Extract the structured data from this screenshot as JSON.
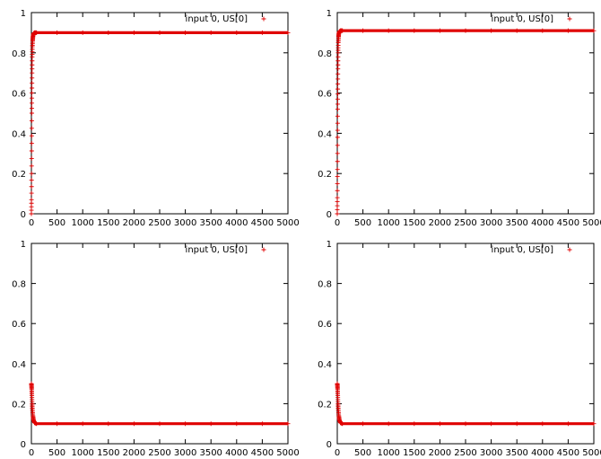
{
  "chart_data": [
    {
      "type": "scatter",
      "xlim": [
        0,
        5000
      ],
      "ylim": [
        0,
        1
      ],
      "x_ticks": [
        0,
        500,
        1000,
        1500,
        2000,
        2500,
        3000,
        3500,
        4000,
        4500,
        5000
      ],
      "y_ticks": [
        0,
        0.2,
        0.4,
        0.6,
        0.8,
        1
      ],
      "grid": false,
      "legend_position": "top-right",
      "series": [
        {
          "name": "input 0, US[0]",
          "color": "#e00000",
          "marker": "plus",
          "x": [
            0,
            2,
            4,
            6,
            8,
            10,
            13,
            16,
            20,
            25,
            30,
            40,
            60,
            100,
            500,
            1000,
            1500,
            2000,
            2500,
            3000,
            3500,
            4000,
            4500,
            5000
          ],
          "y": [
            0.0,
            0.07,
            0.2,
            0.35,
            0.5,
            0.6,
            0.7,
            0.78,
            0.83,
            0.86,
            0.88,
            0.895,
            0.9,
            0.9,
            0.9,
            0.9,
            0.9,
            0.9,
            0.9,
            0.9,
            0.9,
            0.9,
            0.9,
            0.9
          ]
        }
      ]
    },
    {
      "type": "scatter",
      "xlim": [
        0,
        5000
      ],
      "ylim": [
        0,
        1
      ],
      "x_ticks": [
        0,
        500,
        1000,
        1500,
        2000,
        2500,
        3000,
        3500,
        4000,
        4500,
        5000
      ],
      "y_ticks": [
        0,
        0.2,
        0.4,
        0.6,
        0.8,
        1
      ],
      "grid": false,
      "legend_position": "top-right",
      "series": [
        {
          "name": "input 0, US[0]",
          "color": "#e00000",
          "marker": "plus",
          "x": [
            0,
            2,
            4,
            6,
            8,
            10,
            13,
            16,
            20,
            25,
            30,
            40,
            60,
            100,
            500,
            1000,
            1500,
            2000,
            2500,
            3000,
            3500,
            4000,
            4500,
            5000
          ],
          "y": [
            0.0,
            0.08,
            0.22,
            0.38,
            0.52,
            0.62,
            0.72,
            0.8,
            0.85,
            0.88,
            0.895,
            0.905,
            0.91,
            0.91,
            0.91,
            0.91,
            0.91,
            0.91,
            0.91,
            0.91,
            0.91,
            0.91,
            0.91,
            0.91
          ]
        }
      ]
    },
    {
      "type": "scatter",
      "xlim": [
        0,
        5000
      ],
      "ylim": [
        0,
        1
      ],
      "x_ticks": [
        0,
        500,
        1000,
        1500,
        2000,
        2500,
        3000,
        3500,
        4000,
        4500,
        5000
      ],
      "y_ticks": [
        0,
        0.2,
        0.4,
        0.6,
        0.8,
        1
      ],
      "grid": false,
      "legend_position": "top-right",
      "series": [
        {
          "name": "input 0, US[0]",
          "color": "#e00000",
          "marker": "plus",
          "x": [
            0,
            3,
            6,
            10,
            15,
            20,
            30,
            40,
            60,
            100,
            500,
            1000,
            1500,
            2000,
            2500,
            3000,
            3500,
            4000,
            4500,
            5000
          ],
          "y": [
            0.3,
            0.29,
            0.27,
            0.24,
            0.2,
            0.17,
            0.14,
            0.12,
            0.105,
            0.1,
            0.1,
            0.1,
            0.1,
            0.1,
            0.1,
            0.1,
            0.1,
            0.1,
            0.1,
            0.1
          ]
        }
      ]
    },
    {
      "type": "scatter",
      "xlim": [
        0,
        5000
      ],
      "ylim": [
        0,
        1
      ],
      "x_ticks": [
        0,
        500,
        1000,
        1500,
        2000,
        2500,
        3000,
        3500,
        4000,
        4500,
        5000
      ],
      "y_ticks": [
        0,
        0.2,
        0.4,
        0.6,
        0.8,
        1
      ],
      "grid": false,
      "legend_position": "top-right",
      "series": [
        {
          "name": "input 0, US[0]",
          "color": "#e00000",
          "marker": "plus",
          "x": [
            0,
            3,
            6,
            10,
            15,
            20,
            30,
            40,
            60,
            100,
            500,
            1000,
            1500,
            2000,
            2500,
            3000,
            3500,
            4000,
            4500,
            5000
          ],
          "y": [
            0.3,
            0.29,
            0.27,
            0.24,
            0.2,
            0.17,
            0.14,
            0.12,
            0.105,
            0.1,
            0.1,
            0.1,
            0.1,
            0.1,
            0.1,
            0.1,
            0.1,
            0.1,
            0.1,
            0.1
          ]
        }
      ]
    }
  ]
}
